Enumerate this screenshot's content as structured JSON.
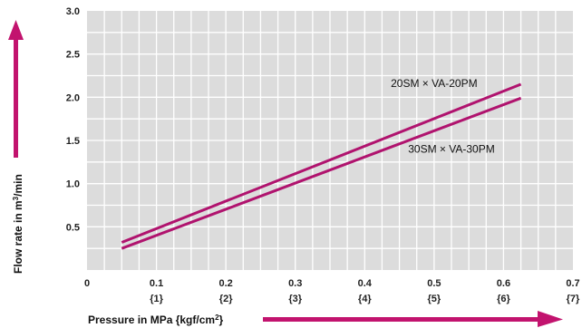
{
  "chart_data": {
    "type": "line",
    "title": "",
    "xlabel": "Pressure in MPa {kgf/cm",
    "xlabel_sup": "2",
    "xlabel_tail": "}",
    "ylabel": "Flow rate in m",
    "ylabel_sup": "3",
    "ylabel_tail": "/min",
    "xlim": [
      0,
      0.7
    ],
    "ylim": [
      0,
      3.0
    ],
    "grid": true,
    "x_ticks": [
      {
        "value": 0,
        "label": "0",
        "sublabel": ""
      },
      {
        "value": 0.1,
        "label": "0.1",
        "sublabel": "{1}"
      },
      {
        "value": 0.2,
        "label": "0.2",
        "sublabel": "{2}"
      },
      {
        "value": 0.3,
        "label": "0.3",
        "sublabel": "{3}"
      },
      {
        "value": 0.4,
        "label": "0.4",
        "sublabel": "{4}"
      },
      {
        "value": 0.5,
        "label": "0.5",
        "sublabel": "{5}"
      },
      {
        "value": 0.6,
        "label": "0.6",
        "sublabel": "{6}"
      },
      {
        "value": 0.7,
        "label": "0.7",
        "sublabel": "{7}"
      }
    ],
    "y_ticks": [
      {
        "value": 0.5,
        "label": "0.5"
      },
      {
        "value": 1.0,
        "label": "1.0"
      },
      {
        "value": 1.5,
        "label": "1.5"
      },
      {
        "value": 2.0,
        "label": "2.0"
      },
      {
        "value": 2.5,
        "label": "2.5"
      },
      {
        "value": 3.0,
        "label": "3.0"
      }
    ],
    "series": [
      {
        "name": "20SM × VA-20PM",
        "color": "#b0136e",
        "x": [
          0.05,
          0.625
        ],
        "y": [
          0.32,
          2.15
        ],
        "label_at": [
          0.5,
          2.12
        ]
      },
      {
        "name": "30SM × VA-30PM",
        "color": "#b0136e",
        "x": [
          0.05,
          0.625
        ],
        "y": [
          0.25,
          1.99
        ],
        "label_at": [
          0.525,
          1.36
        ]
      }
    ],
    "colors": {
      "plot_bg": "#dcdcdc",
      "grid": "#ffffff",
      "arrow": "#c2136e"
    }
  }
}
